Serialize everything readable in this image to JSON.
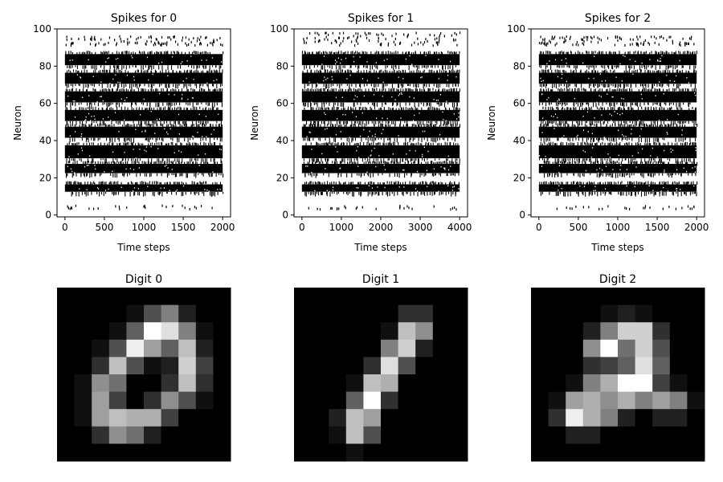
{
  "chart_data": [
    {
      "type": "scatter",
      "title": "Spikes for 0",
      "xlabel": "Time steps",
      "ylabel": "Neuron",
      "xlim": [
        -100,
        2100
      ],
      "ylim": [
        -1,
        100
      ],
      "xticks": [
        0,
        500,
        1000,
        1500,
        2000
      ],
      "yticks": [
        0,
        20,
        40,
        60,
        80,
        100
      ],
      "marker": "|",
      "color": "#000000",
      "raster": {
        "n_steps": 2000,
        "dense_bands": [
          [
            12,
            17
          ],
          [
            22,
            28
          ],
          [
            30,
            38
          ],
          [
            41,
            48
          ],
          [
            50,
            57
          ],
          [
            60,
            67
          ],
          [
            70,
            77
          ],
          [
            80,
            87
          ]
        ],
        "sparse_bands": [
          [
            3,
            5
          ],
          [
            91,
            96
          ]
        ]
      }
    },
    {
      "type": "scatter",
      "title": "Spikes for 1",
      "xlabel": "Time steps",
      "ylabel": "Neuron",
      "xlim": [
        -200,
        4200
      ],
      "ylim": [
        -1,
        100
      ],
      "xticks": [
        0,
        1000,
        2000,
        3000,
        4000
      ],
      "yticks": [
        0,
        20,
        40,
        60,
        80,
        100
      ],
      "marker": "|",
      "color": "#000000",
      "raster": {
        "n_steps": 4000,
        "dense_bands": [
          [
            12,
            17
          ],
          [
            22,
            28
          ],
          [
            30,
            38
          ],
          [
            41,
            48
          ],
          [
            50,
            57
          ],
          [
            60,
            67
          ],
          [
            70,
            77
          ],
          [
            80,
            87
          ]
        ],
        "sparse_bands": [
          [
            3,
            5
          ],
          [
            91,
            98
          ]
        ]
      }
    },
    {
      "type": "scatter",
      "title": "Spikes for 2",
      "xlabel": "Time steps",
      "ylabel": "Neuron",
      "xlim": [
        -100,
        2100
      ],
      "ylim": [
        -1,
        100
      ],
      "xticks": [
        0,
        500,
        1000,
        1500,
        2000
      ],
      "yticks": [
        0,
        20,
        40,
        60,
        80,
        100
      ],
      "marker": "|",
      "color": "#000000",
      "raster": {
        "n_steps": 2000,
        "dense_bands": [
          [
            12,
            17
          ],
          [
            22,
            28
          ],
          [
            30,
            38
          ],
          [
            41,
            48
          ],
          [
            50,
            57
          ],
          [
            60,
            67
          ],
          [
            70,
            77
          ],
          [
            80,
            87
          ]
        ],
        "sparse_bands": [
          [
            3,
            5
          ],
          [
            91,
            96
          ]
        ]
      }
    },
    {
      "type": "heatmap",
      "title": "Digit 0",
      "colormap": "gray",
      "vrange": [
        0,
        16
      ],
      "values": [
        [
          0,
          0,
          0,
          0,
          0,
          0,
          0,
          0,
          0,
          0
        ],
        [
          0,
          0,
          0,
          0,
          1,
          5,
          8,
          2,
          0,
          0
        ],
        [
          0,
          0,
          0,
          1,
          6,
          16,
          14,
          8,
          1,
          0
        ],
        [
          0,
          0,
          1,
          5,
          15,
          10,
          6,
          12,
          2,
          0
        ],
        [
          0,
          0,
          3,
          12,
          5,
          1,
          2,
          13,
          4,
          0
        ],
        [
          0,
          1,
          9,
          7,
          0,
          0,
          3,
          12,
          3,
          0
        ],
        [
          0,
          1,
          10,
          4,
          0,
          3,
          9,
          5,
          1,
          0
        ],
        [
          0,
          1,
          10,
          12,
          11,
          11,
          4,
          0,
          0,
          0
        ],
        [
          0,
          0,
          3,
          9,
          7,
          2,
          0,
          0,
          0,
          0
        ],
        [
          0,
          0,
          0,
          0,
          0,
          0,
          0,
          0,
          0,
          0
        ]
      ]
    },
    {
      "type": "heatmap",
      "title": "Digit 1",
      "colormap": "gray",
      "vrange": [
        0,
        16
      ],
      "values": [
        [
          0,
          0,
          0,
          0,
          0,
          0,
          0,
          0,
          0,
          0
        ],
        [
          0,
          0,
          0,
          0,
          0,
          0,
          3,
          3,
          0,
          0
        ],
        [
          0,
          0,
          0,
          0,
          0,
          1,
          12,
          9,
          0,
          0
        ],
        [
          0,
          0,
          0,
          0,
          0,
          8,
          13,
          2,
          0,
          0
        ],
        [
          0,
          0,
          0,
          0,
          3,
          14,
          5,
          0,
          0,
          0
        ],
        [
          0,
          0,
          0,
          1,
          12,
          11,
          0,
          0,
          0,
          0
        ],
        [
          0,
          0,
          0,
          6,
          16,
          3,
          0,
          0,
          0,
          0
        ],
        [
          0,
          0,
          2,
          12,
          10,
          0,
          0,
          0,
          0,
          0
        ],
        [
          0,
          0,
          1,
          12,
          5,
          0,
          0,
          0,
          0,
          0
        ],
        [
          0,
          0,
          0,
          1,
          0,
          0,
          0,
          0,
          0,
          0
        ]
      ]
    },
    {
      "type": "heatmap",
      "title": "Digit 2",
      "colormap": "gray",
      "vrange": [
        0,
        16
      ],
      "values": [
        [
          0,
          0,
          0,
          0,
          0,
          0,
          0,
          0,
          0,
          0
        ],
        [
          0,
          0,
          0,
          0,
          1,
          2,
          1,
          0,
          0,
          0
        ],
        [
          0,
          0,
          0,
          2,
          8,
          13,
          13,
          3,
          0,
          0
        ],
        [
          0,
          0,
          0,
          9,
          16,
          7,
          13,
          5,
          0,
          0
        ],
        [
          0,
          0,
          0,
          3,
          4,
          6,
          14,
          6,
          0,
          0
        ],
        [
          0,
          0,
          1,
          8,
          11,
          16,
          16,
          4,
          1,
          0
        ],
        [
          0,
          1,
          10,
          11,
          9,
          11,
          8,
          10,
          8,
          1
        ],
        [
          0,
          3,
          15,
          11,
          8,
          2,
          0,
          2,
          2,
          0
        ],
        [
          0,
          0,
          2,
          2,
          0,
          0,
          0,
          0,
          0,
          0
        ],
        [
          0,
          0,
          0,
          0,
          0,
          0,
          0,
          0,
          0,
          0
        ]
      ]
    }
  ]
}
